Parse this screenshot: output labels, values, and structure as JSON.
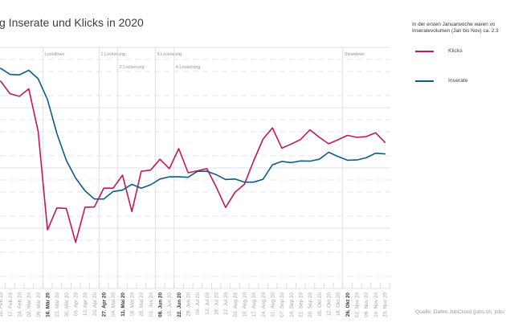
{
  "chart_data": {
    "type": "line",
    "title": "g Inserate und Klicks in 2020",
    "xlabel": "",
    "ylabel": "",
    "categories": [
      "10. Feb 20",
      "17. Feb 20",
      "24. Feb 20",
      "02. Mär 20",
      "09. Mär 20",
      "16. Mär 20",
      "23. Mär 20",
      "30. Mär 20",
      "06. Apr 20",
      "13. Apr 20",
      "20. Apr 20",
      "27. Apr 20",
      "04. Mai 20",
      "11. Mai 20",
      "18. Mai 20",
      "25. Mai 20",
      "01. Jun 20",
      "08. Jun 20",
      "15. Jun 20",
      "22. Jun 20",
      "29. Jun 20",
      "06. Jul 20",
      "13. Jul 20",
      "20. Jul 20",
      "27. Jul 20",
      "03. Aug 20",
      "10. Aug 20",
      "17. Aug 20",
      "24. Aug 20",
      "31. Aug 20",
      "07. Sep 20",
      "14. Sep 20",
      "21. Sep 20",
      "28. Sep 20",
      "05. Okt 20",
      "12. Okt 20",
      "19. Okt 20",
      "26. Okt 20",
      "02. Nov 20",
      "09. Nov 20",
      "16. Nov 20",
      "23. Nov 20"
    ],
    "bold_categories": [
      "16. Mär 20",
      "27. Apr 20",
      "11. Mai 20",
      "08. Jun 20",
      "22. Jun 20",
      "26. Okt 20"
    ],
    "series": [
      {
        "name": "Klicks",
        "color": "#c2185b",
        "values": [
          86.0,
          80.8,
          79.7,
          82.8,
          65.2,
          24.3,
          33.4,
          33.2,
          19.1,
          33.7,
          33.8,
          41.6,
          41.6,
          47.0,
          31.9,
          48.6,
          49.1,
          53.6,
          49.7,
          58.0,
          48.0,
          48.8,
          49.7,
          42.1,
          33.6,
          39.9,
          43.2,
          53.0,
          62.0,
          66.6,
          58.2,
          59.9,
          61.8,
          65.8,
          62.7,
          60.0,
          61.7,
          63.5,
          62.7,
          63.0,
          64.6,
          60.6
        ]
      },
      {
        "name": "Inserate",
        "color": "#0f5b86",
        "values": [
          91.3,
          88.8,
          88.6,
          90.5,
          87.0,
          78.3,
          64.3,
          53.2,
          45.8,
          40.5,
          37.1,
          37.1,
          40.2,
          40.8,
          43.2,
          41.6,
          43.0,
          45.4,
          46.3,
          46.3,
          46.1,
          48.6,
          48.6,
          47.2,
          45.2,
          45.4,
          44.1,
          44.1,
          45.3,
          51.3,
          52.7,
          52.2,
          52.9,
          52.8,
          53.6,
          56.5,
          54.7,
          53.2,
          53.3,
          54.2,
          56.1,
          55.8
        ]
      }
    ],
    "ylim": [
      0,
      100
    ],
    "y_tick_labels_visible": false,
    "grid": true,
    "y_gridlines": {
      "major": [
        0,
        25,
        50,
        75,
        100
      ],
      "minor": [
        5,
        15,
        20,
        30,
        40,
        45,
        55,
        65,
        70,
        80,
        90,
        95
      ]
    },
    "legend": "top-right",
    "annotations": [
      {
        "label": "Lockdown",
        "category": "16. Mär 20"
      },
      {
        "label": "1.Lockerung",
        "category": "27. Apr 20"
      },
      {
        "label": "2.Lockerung",
        "category": "11. Mai 20"
      },
      {
        "label": "3.Lockerung",
        "category": "08. Jun 20"
      },
      {
        "label": "4.Lockerung",
        "category": "22. Jun 20"
      },
      {
        "label": "Slowdown",
        "category": "26. Okt 20"
      }
    ],
    "note": [
      "In der ersten Januarwoche waren vo",
      "Inseratevolumen (Jan bis Nov) ca. 2.3"
    ],
    "source": "Quelle: Daten JobCloud (jobs.ch, jobu"
  }
}
